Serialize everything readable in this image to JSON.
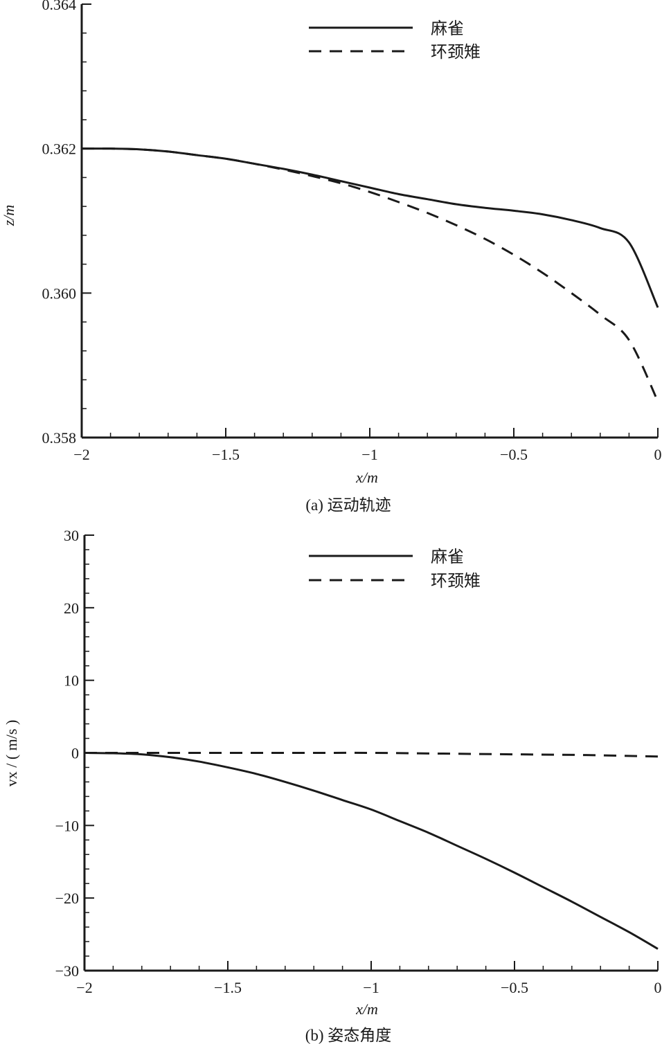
{
  "chart_data": [
    {
      "type": "line",
      "caption": "(a) 运动轨迹",
      "xlabel": "x/m",
      "ylabel": "z/m",
      "xlim": [
        -2,
        0
      ],
      "ylim": [
        0.358,
        0.364
      ],
      "x_ticks": [
        -2,
        -1.5,
        -1,
        -0.5,
        0
      ],
      "x_tick_labels": [
        "−2",
        "−1.5",
        "−1",
        "−0.5",
        "0"
      ],
      "y_ticks": [
        0.358,
        0.36,
        0.362,
        0.364
      ],
      "y_tick_labels": [
        "0.358",
        "0.360",
        "0.362",
        "0.364"
      ],
      "legend_position": "top-right",
      "series": [
        {
          "name": "麻雀",
          "style": "solid",
          "x": [
            -2.0,
            -1.9,
            -1.8,
            -1.7,
            -1.6,
            -1.5,
            -1.4,
            -1.3,
            -1.2,
            -1.1,
            -1.0,
            -0.9,
            -0.8,
            -0.7,
            -0.6,
            -0.5,
            -0.4,
            -0.3,
            -0.2,
            -0.1,
            0.0
          ],
          "y": [
            0.362,
            0.362,
            0.36199,
            0.36196,
            0.36191,
            0.36186,
            0.36179,
            0.36172,
            0.36164,
            0.36155,
            0.36146,
            0.36137,
            0.3613,
            0.36123,
            0.36118,
            0.36114,
            0.36109,
            0.36101,
            0.3609,
            0.3607,
            0.3598
          ]
        },
        {
          "name": "环颈雉",
          "style": "dashed",
          "x": [
            -2.0,
            -1.9,
            -1.8,
            -1.7,
            -1.6,
            -1.5,
            -1.4,
            -1.3,
            -1.2,
            -1.1,
            -1.0,
            -0.9,
            -0.8,
            -0.7,
            -0.6,
            -0.5,
            -0.4,
            -0.3,
            -0.2,
            -0.1,
            0.0
          ],
          "y": [
            0.362,
            0.362,
            0.36199,
            0.36196,
            0.36191,
            0.36186,
            0.36179,
            0.36171,
            0.36162,
            0.36152,
            0.3614,
            0.36126,
            0.36111,
            0.36094,
            0.36075,
            0.36053,
            0.36028,
            0.36,
            0.3597,
            0.35935,
            0.3585
          ]
        }
      ]
    },
    {
      "type": "line",
      "caption": "(b) 姿态角度",
      "xlabel": "x/m",
      "ylabel": "vx / ( m/s )",
      "xlim": [
        -2,
        0
      ],
      "ylim": [
        -30,
        30
      ],
      "x_ticks": [
        -2,
        -1.5,
        -1,
        -0.5,
        0
      ],
      "x_tick_labels": [
        "−2",
        "−1.5",
        "−1",
        "−0.5",
        "0"
      ],
      "y_ticks": [
        -30,
        -20,
        -10,
        0,
        10,
        20,
        30
      ],
      "y_tick_labels": [
        "−30",
        "−20",
        "−10",
        "0",
        "10",
        "20",
        "30"
      ],
      "legend_position": "top-right",
      "series": [
        {
          "name": "麻雀",
          "style": "solid",
          "x": [
            -2.0,
            -1.9,
            -1.8,
            -1.7,
            -1.6,
            -1.5,
            -1.4,
            -1.3,
            -1.2,
            -1.1,
            -1.0,
            -0.9,
            -0.8,
            -0.7,
            -0.6,
            -0.5,
            -0.4,
            -0.3,
            -0.2,
            -0.1,
            0.0
          ],
          "y": [
            0.0,
            -0.05,
            -0.2,
            -0.6,
            -1.2,
            -2.0,
            -2.9,
            -4.0,
            -5.2,
            -6.5,
            -7.8,
            -9.4,
            -11.0,
            -12.8,
            -14.6,
            -16.5,
            -18.5,
            -20.5,
            -22.6,
            -24.7,
            -27.0
          ]
        },
        {
          "name": "环颈雉",
          "style": "dashed",
          "x": [
            -2.0,
            -1.75,
            -1.5,
            -1.25,
            -1.0,
            -0.75,
            -0.5,
            -0.25,
            0.0
          ],
          "y": [
            0.0,
            0.0,
            0.0,
            0.0,
            0.0,
            -0.1,
            -0.2,
            -0.3,
            -0.5
          ]
        }
      ]
    }
  ]
}
